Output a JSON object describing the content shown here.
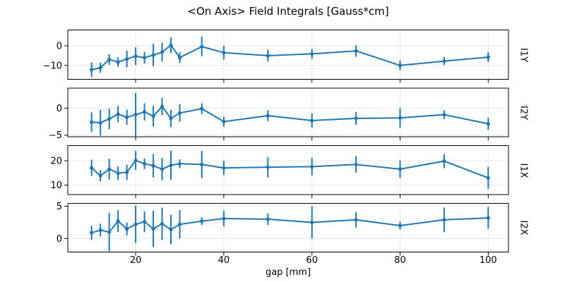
{
  "figure": {
    "title": "<On Axis> Field Integrals [Gauss*cm]",
    "background": "#ffffff",
    "accent_color": "#1f77b4",
    "grid_color": "#e6e6e6",
    "spine_color": "#000000",
    "text_color": "#000000"
  },
  "chart_data": {
    "type": "line",
    "title": "<On Axis> Field Integrals [Gauss*cm]",
    "xlabel": "gap [mm]",
    "grid": true,
    "error_bars": true,
    "marker": "point",
    "legend": null,
    "x": [
      10,
      12,
      14,
      16,
      18,
      20,
      22,
      24,
      26,
      28,
      30,
      35,
      40,
      50,
      60,
      70,
      80,
      90,
      100
    ],
    "x_ticks": [
      20,
      40,
      60,
      80,
      100
    ],
    "x_tick_labels": [
      "20",
      "40",
      "60",
      "80",
      "100"
    ],
    "xlim": [
      4.6,
      104.6
    ],
    "subplots": [
      {
        "ylabel": "I1Y",
        "ylabel_side": "right",
        "y_ticks": [
          0,
          -10
        ],
        "y_tick_labels": [
          "0",
          "−10"
        ],
        "ylim": [
          -17.1,
          8.1
        ],
        "values": [
          -12.2,
          -11.2,
          -7.0,
          -8.3,
          -6.7,
          -5.3,
          -6.1,
          -4.7,
          -3.2,
          0.3,
          -6.0,
          -0.4,
          -3.5,
          -5.0,
          -4.1,
          -2.6,
          -10.0,
          -7.8,
          -5.8
        ],
        "errors": [
          3.7,
          2.6,
          2.7,
          2.4,
          4.3,
          4.5,
          3.0,
          5.7,
          4.8,
          4.0,
          2.7,
          5.0,
          3.5,
          3.0,
          2.5,
          3.0,
          2.5,
          2.0,
          2.5
        ]
      },
      {
        "ylabel": "I2Y",
        "ylabel_side": "right",
        "y_ticks": [
          0,
          -5
        ],
        "y_tick_labels": [
          "0",
          "−5"
        ],
        "ylim": [
          -5.3,
          3.7
        ],
        "values": [
          -2.6,
          -2.7,
          -2.0,
          -1.1,
          -1.7,
          -1.2,
          -0.7,
          -1.5,
          0.3,
          -1.9,
          -0.9,
          -0.1,
          -2.5,
          -1.4,
          -2.3,
          -1.9,
          -1.8,
          -1.2,
          -2.9
        ],
        "errors": [
          1.8,
          2.4,
          1.9,
          1.5,
          1.4,
          4.0,
          1.6,
          1.9,
          1.6,
          1.6,
          1.6,
          1.0,
          0.9,
          1.0,
          1.3,
          1.2,
          1.8,
          0.8,
          1.1
        ]
      },
      {
        "ylabel": "I1X",
        "ylabel_side": "right",
        "y_ticks": [
          20,
          10
        ],
        "y_tick_labels": [
          "20",
          "10"
        ],
        "ylim": [
          6.1,
          26.3
        ],
        "values": [
          17.1,
          13.9,
          16.6,
          14.9,
          15.3,
          20.2,
          18.8,
          18.0,
          16.6,
          18.2,
          18.8,
          18.5,
          17.1,
          17.4,
          17.6,
          18.5,
          16.6,
          19.9,
          13.0
        ],
        "errors": [
          3.4,
          2.3,
          4.3,
          2.8,
          3.1,
          3.9,
          2.2,
          4.8,
          4.6,
          6.0,
          1.8,
          5.6,
          3.0,
          4.2,
          3.6,
          3.4,
          3.6,
          2.9,
          4.5
        ]
      },
      {
        "ylabel": "I2X",
        "ylabel_side": "right",
        "y_ticks": [
          5,
          0
        ],
        "y_tick_labels": [
          "5",
          "0"
        ],
        "ylim": [
          -2.1,
          5.45
        ],
        "values": [
          0.9,
          1.3,
          1.0,
          2.7,
          1.5,
          2.2,
          2.6,
          1.5,
          2.3,
          1.4,
          2.2,
          2.7,
          3.1,
          3.0,
          2.5,
          2.9,
          2.0,
          2.9,
          3.2
        ],
        "errors": [
          1.1,
          1.0,
          3.0,
          1.7,
          1.0,
          2.9,
          1.6,
          2.8,
          2.5,
          2.3,
          2.2,
          0.6,
          1.2,
          0.9,
          2.5,
          1.2,
          0.6,
          1.9,
          1.7
        ]
      }
    ]
  }
}
